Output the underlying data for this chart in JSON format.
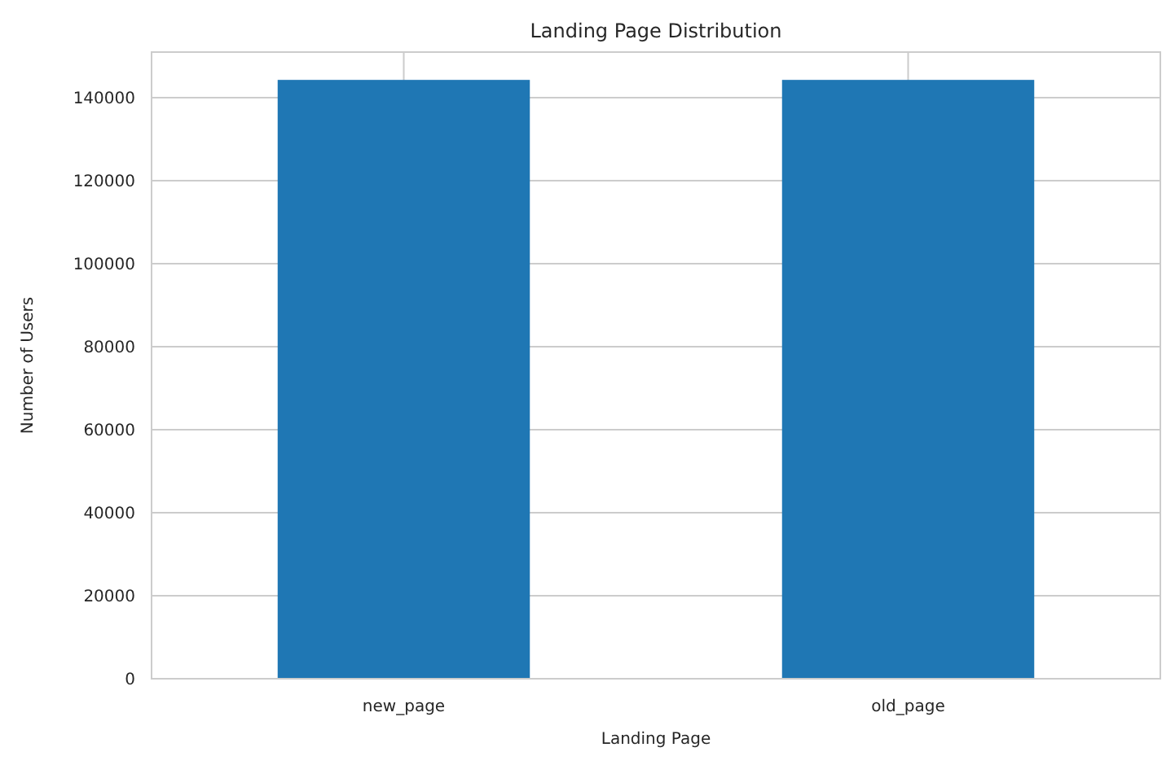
{
  "chart_data": {
    "type": "bar",
    "title": "Landing Page Distribution",
    "xlabel": "Landing Page",
    "ylabel": "Number of Users",
    "categories": [
      "new_page",
      "old_page"
    ],
    "values": [
      144300,
      144300
    ],
    "color": "#1f77b4",
    "ylim": [
      0,
      151000
    ],
    "yticks": [
      0,
      20000,
      40000,
      60000,
      80000,
      100000,
      120000,
      140000
    ],
    "grid": true
  }
}
